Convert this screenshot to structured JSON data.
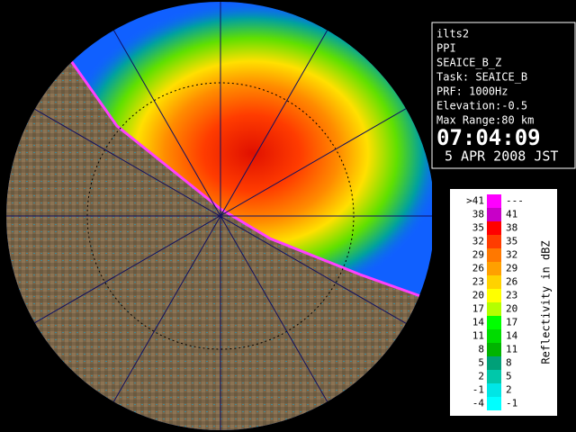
{
  "info": [
    "ilts2",
    "PPI",
    "SEAICE_B_Z",
    "Task: SEAICE_B",
    "PRF: 1000Hz",
    "Elevation:-0.5",
    "Max Range:80 km"
  ],
  "time": "07:04:09",
  "date": "5 APR 2008 JST",
  "legend": {
    "title": "Reflectivity in dBZ",
    "rows": [
      {
        "low": ">41",
        "high": "---",
        "color": "#ff00ff"
      },
      {
        "low": "38",
        "high": "41",
        "color": "#c800c8"
      },
      {
        "low": "35",
        "high": "38",
        "color": "#ff0000"
      },
      {
        "low": "32",
        "high": "35",
        "color": "#ff3c00"
      },
      {
        "low": "29",
        "high": "32",
        "color": "#ff7800"
      },
      {
        "low": "26",
        "high": "29",
        "color": "#ffa000"
      },
      {
        "low": "23",
        "high": "26",
        "color": "#ffd200"
      },
      {
        "low": "20",
        "high": "23",
        "color": "#ffff00"
      },
      {
        "low": "17",
        "high": "20",
        "color": "#b4ff00"
      },
      {
        "low": "14",
        "high": "17",
        "color": "#00ff00"
      },
      {
        "low": "11",
        "high": "14",
        "color": "#00dc00"
      },
      {
        "low": "8",
        "high": "11",
        "color": "#00b400"
      },
      {
        "low": "5",
        "high": "8",
        "color": "#00a078"
      },
      {
        "low": "2",
        "high": "5",
        "color": "#00c8aa"
      },
      {
        "low": "-1",
        "high": "2",
        "color": "#00e6e6"
      },
      {
        "low": "-4",
        "high": "-1",
        "color": "#00ffff"
      }
    ]
  }
}
